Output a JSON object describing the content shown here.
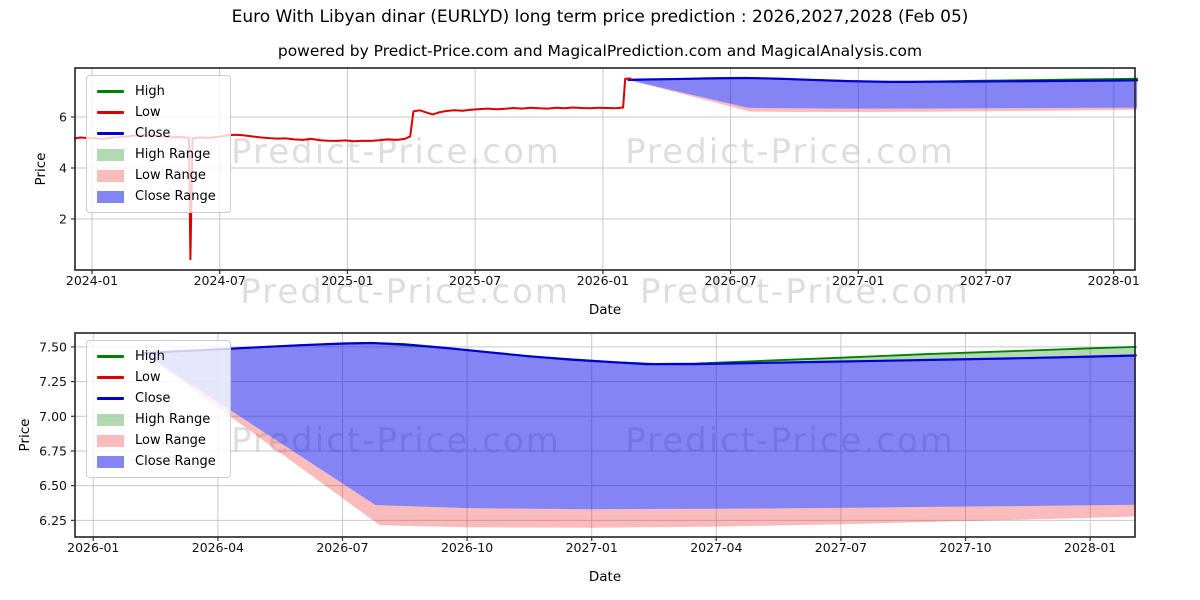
{
  "title": "Euro With Libyan dinar (EURLYD) long term price prediction : 2026,2027,2028 (Feb 05)",
  "subtitle": "powered by Predict-Price.com and MagicalPrediction.com and MagicalAnalysis.com",
  "watermark": {
    "text": "Predict-Price.com"
  },
  "colors": {
    "high_line": "#008000",
    "low_line": "#dd0000",
    "close_line": "#0000cd",
    "high_range_fill": "rgba(0,128,0,0.3)",
    "low_range_fill": "rgba(235,30,30,0.3)",
    "close_range_fill": "rgba(10,10,235,0.5)",
    "grid": "#c9c9c9",
    "spine": "#222222"
  },
  "legend": {
    "items": [
      {
        "label": "High",
        "type": "line",
        "color": "#008000"
      },
      {
        "label": "Low",
        "type": "line",
        "color": "#dd0000"
      },
      {
        "label": "Close",
        "type": "line",
        "color": "#0000cd"
      },
      {
        "label": "High Range",
        "type": "patch",
        "color": "rgba(0,128,0,0.3)"
      },
      {
        "label": "Low Range",
        "type": "patch",
        "color": "rgba(235,30,30,0.3)"
      },
      {
        "label": "Close Range",
        "type": "patch",
        "color": "rgba(10,10,235,0.5)"
      }
    ]
  },
  "chart_data": {
    "type": "line",
    "title": "Euro With Libyan dinar (EURLYD) long term price prediction : 2026,2027,2028 (Feb 05)",
    "x_unit": "months since 2024-01 (m=0 is 2024-01)",
    "series_pool": {
      "low_history": [
        [
          -0.8,
          5.16
        ],
        [
          -0.3,
          5.18
        ],
        [
          0.2,
          5.17
        ],
        [
          0.7,
          5.16
        ],
        [
          1.2,
          5.2
        ],
        [
          1.7,
          5.24
        ],
        [
          2.2,
          5.26
        ],
        [
          2.7,
          5.27
        ],
        [
          3.2,
          5.24
        ],
        [
          3.7,
          5.2
        ],
        [
          4.1,
          5.22
        ],
        [
          4.45,
          5.19
        ],
        [
          4.55,
          5.18
        ],
        [
          4.62,
          0.42
        ],
        [
          4.72,
          5.17
        ],
        [
          5.1,
          5.2
        ],
        [
          5.5,
          5.18
        ],
        [
          5.9,
          5.22
        ],
        [
          6.3,
          5.27
        ],
        [
          6.7,
          5.3
        ],
        [
          7.1,
          5.28
        ],
        [
          7.5,
          5.24
        ],
        [
          7.9,
          5.2
        ],
        [
          8.3,
          5.17
        ],
        [
          8.7,
          5.15
        ],
        [
          9.1,
          5.16
        ],
        [
          9.5,
          5.12
        ],
        [
          9.9,
          5.1
        ],
        [
          10.3,
          5.14
        ],
        [
          10.7,
          5.09
        ],
        [
          11.1,
          5.07
        ],
        [
          11.5,
          5.06
        ],
        [
          11.9,
          5.08
        ],
        [
          12.3,
          5.05
        ],
        [
          12.7,
          5.07
        ],
        [
          13.1,
          5.06
        ],
        [
          13.5,
          5.09
        ],
        [
          13.9,
          5.12
        ],
        [
          14.3,
          5.1
        ],
        [
          14.7,
          5.14
        ],
        [
          14.95,
          5.24
        ],
        [
          15.1,
          6.22
        ],
        [
          15.4,
          6.26
        ],
        [
          15.7,
          6.18
        ],
        [
          16.0,
          6.1
        ],
        [
          16.3,
          6.18
        ],
        [
          16.6,
          6.23
        ],
        [
          17.0,
          6.26
        ],
        [
          17.4,
          6.24
        ],
        [
          17.8,
          6.28
        ],
        [
          18.2,
          6.31
        ],
        [
          18.6,
          6.33
        ],
        [
          19.0,
          6.3
        ],
        [
          19.4,
          6.32
        ],
        [
          19.8,
          6.35
        ],
        [
          20.2,
          6.33
        ],
        [
          20.6,
          6.36
        ],
        [
          21.0,
          6.34
        ],
        [
          21.4,
          6.33
        ],
        [
          21.8,
          6.36
        ],
        [
          22.2,
          6.34
        ],
        [
          22.6,
          6.37
        ],
        [
          23.0,
          6.35
        ],
        [
          23.4,
          6.34
        ],
        [
          23.8,
          6.36
        ],
        [
          24.2,
          6.35
        ],
        [
          24.6,
          6.34
        ],
        [
          24.95,
          6.37
        ],
        [
          25.05,
          7.5
        ],
        [
          25.3,
          7.51
        ]
      ],
      "close_forecast": [
        [
          25.2,
          7.455
        ],
        [
          26,
          7.468
        ],
        [
          27,
          7.482
        ],
        [
          28,
          7.498
        ],
        [
          29,
          7.512
        ],
        [
          30,
          7.524
        ],
        [
          30.7,
          7.528
        ],
        [
          31.5,
          7.518
        ],
        [
          32.5,
          7.492
        ],
        [
          33.5,
          7.462
        ],
        [
          34.5,
          7.432
        ],
        [
          35.5,
          7.408
        ],
        [
          36.5,
          7.39
        ],
        [
          37.3,
          7.376
        ],
        [
          38.5,
          7.376
        ],
        [
          40,
          7.384
        ],
        [
          41.5,
          7.392
        ],
        [
          43,
          7.4
        ],
        [
          44.5,
          7.408
        ],
        [
          46,
          7.416
        ],
        [
          47.5,
          7.426
        ],
        [
          49.1,
          7.438
        ]
      ],
      "high_forecast": [
        [
          25.2,
          7.455
        ],
        [
          27,
          7.482
        ],
        [
          29,
          7.512
        ],
        [
          30.7,
          7.528
        ],
        [
          32.5,
          7.492
        ],
        [
          34.5,
          7.432
        ],
        [
          36.5,
          7.39
        ],
        [
          37.5,
          7.377
        ],
        [
          38.5,
          7.38
        ],
        [
          40,
          7.398
        ],
        [
          42,
          7.422
        ],
        [
          44,
          7.447
        ],
        [
          46,
          7.468
        ],
        [
          48,
          7.49
        ],
        [
          49.1,
          7.5
        ]
      ],
      "close_band_bottom": [
        [
          25.2,
          7.455
        ],
        [
          30.8,
          6.36
        ],
        [
          33,
          6.338
        ],
        [
          36,
          6.33
        ],
        [
          39,
          6.333
        ],
        [
          42,
          6.34
        ],
        [
          45,
          6.35
        ],
        [
          47,
          6.355
        ],
        [
          49.1,
          6.362
        ]
      ],
      "low_band_bottom": [
        [
          25.2,
          7.455
        ],
        [
          30.9,
          6.215
        ],
        [
          33,
          6.2
        ],
        [
          36,
          6.196
        ],
        [
          39,
          6.205
        ],
        [
          42,
          6.222
        ],
        [
          45,
          6.245
        ],
        [
          47,
          6.26
        ],
        [
          49.1,
          6.278
        ]
      ]
    },
    "charts": [
      {
        "name": "overview",
        "xlabel": "Date",
        "ylabel": "Price",
        "x_offset": 0,
        "xlim": [
          -0.8,
          49.0
        ],
        "ylim": [
          0,
          7.92
        ],
        "xticks": [
          {
            "m": 0,
            "label": "2024-01"
          },
          {
            "m": 6,
            "label": "2024-07"
          },
          {
            "m": 12,
            "label": "2025-01"
          },
          {
            "m": 18,
            "label": "2025-07"
          },
          {
            "m": 24,
            "label": "2026-01"
          },
          {
            "m": 30,
            "label": "2026-07"
          },
          {
            "m": 36,
            "label": "2027-01"
          },
          {
            "m": 42,
            "label": "2027-07"
          },
          {
            "m": 48,
            "label": "2028-01"
          }
        ],
        "yticks": [
          {
            "v": 2,
            "label": "2"
          },
          {
            "v": 4,
            "label": "4"
          },
          {
            "v": 6,
            "label": "6"
          }
        ],
        "bands": [
          {
            "name": "high-range-band",
            "top": "high_forecast",
            "bottom": "close_forecast",
            "fill": "rgba(0,128,0,0.3)"
          },
          {
            "name": "low-range-band",
            "top": "close_band_bottom",
            "bottom": "low_band_bottom",
            "fill": "rgba(235,30,30,0.3)"
          },
          {
            "name": "close-range-band",
            "top": "close_forecast",
            "bottom": "close_band_bottom",
            "fill": "rgba(10,10,235,0.5)"
          }
        ],
        "lines": [
          {
            "name": "high-forecast-line",
            "ref": "high_forecast",
            "color": "#008000",
            "width": 1.8,
            "noisy": false
          },
          {
            "name": "close-forecast-line",
            "ref": "close_forecast",
            "color": "#0000cd",
            "width": 2.2,
            "noisy": false
          },
          {
            "name": "low-history-line",
            "ref": "low_history",
            "color": "#dd0000",
            "width": 2,
            "noisy": true
          }
        ]
      },
      {
        "name": "forecast-detail",
        "xlabel": "Date",
        "ylabel": "Price",
        "x_offset": -24,
        "xlim": [
          -0.44,
          25.08
        ],
        "ylim": [
          6.13,
          7.6
        ],
        "xticks": [
          {
            "m": 0,
            "label": "2026-01"
          },
          {
            "m": 3,
            "label": "2026-04"
          },
          {
            "m": 6,
            "label": "2026-07"
          },
          {
            "m": 9,
            "label": "2026-10"
          },
          {
            "m": 12,
            "label": "2027-01"
          },
          {
            "m": 15,
            "label": "2027-04"
          },
          {
            "m": 18,
            "label": "2027-07"
          },
          {
            "m": 21,
            "label": "2027-10"
          },
          {
            "m": 24,
            "label": "2028-01"
          }
        ],
        "yticks": [
          {
            "v": 6.25,
            "label": "6.25"
          },
          {
            "v": 6.5,
            "label": "6.50"
          },
          {
            "v": 6.75,
            "label": "6.75"
          },
          {
            "v": 7.0,
            "label": "7.00"
          },
          {
            "v": 7.25,
            "label": "7.25"
          },
          {
            "v": 7.5,
            "label": "7.50"
          }
        ],
        "bands": [
          {
            "name": "high-range-band",
            "top": "high_forecast",
            "bottom": "close_forecast",
            "fill": "rgba(0,128,0,0.3)"
          },
          {
            "name": "low-range-band",
            "top": "close_band_bottom",
            "bottom": "low_band_bottom",
            "fill": "rgba(235,30,30,0.3)"
          },
          {
            "name": "close-range-band",
            "top": "close_forecast",
            "bottom": "close_band_bottom",
            "fill": "rgba(10,10,235,0.5)"
          }
        ],
        "lines": [
          {
            "name": "high-forecast-line",
            "ref": "high_forecast",
            "color": "#008000",
            "width": 1.8,
            "noisy": false
          },
          {
            "name": "close-forecast-line",
            "ref": "close_forecast",
            "color": "#0000cd",
            "width": 2.2,
            "noisy": false
          }
        ]
      }
    ]
  }
}
